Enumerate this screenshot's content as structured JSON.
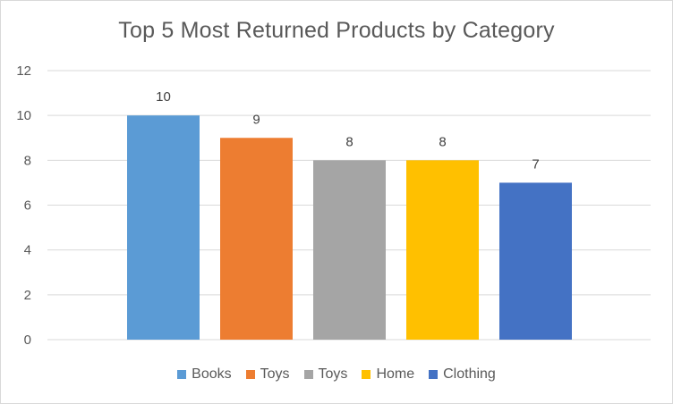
{
  "chart_data": {
    "type": "bar",
    "title": "Top 5 Most Returned Products by Category",
    "xlabel": "",
    "ylabel": "",
    "ylim": [
      0,
      12
    ],
    "yticks": [
      0,
      2,
      4,
      6,
      8,
      10,
      12
    ],
    "grid": true,
    "legend_position": "bottom",
    "series": [
      {
        "name": "Books",
        "value": 10,
        "color": "#5B9BD5"
      },
      {
        "name": "Toys",
        "value": 9,
        "color": "#ED7D31"
      },
      {
        "name": "Toys",
        "value": 8,
        "color": "#A5A5A5"
      },
      {
        "name": "Home",
        "value": 8,
        "color": "#FFC000"
      },
      {
        "name": "Clothing",
        "value": 7,
        "color": "#4472C4"
      }
    ]
  }
}
